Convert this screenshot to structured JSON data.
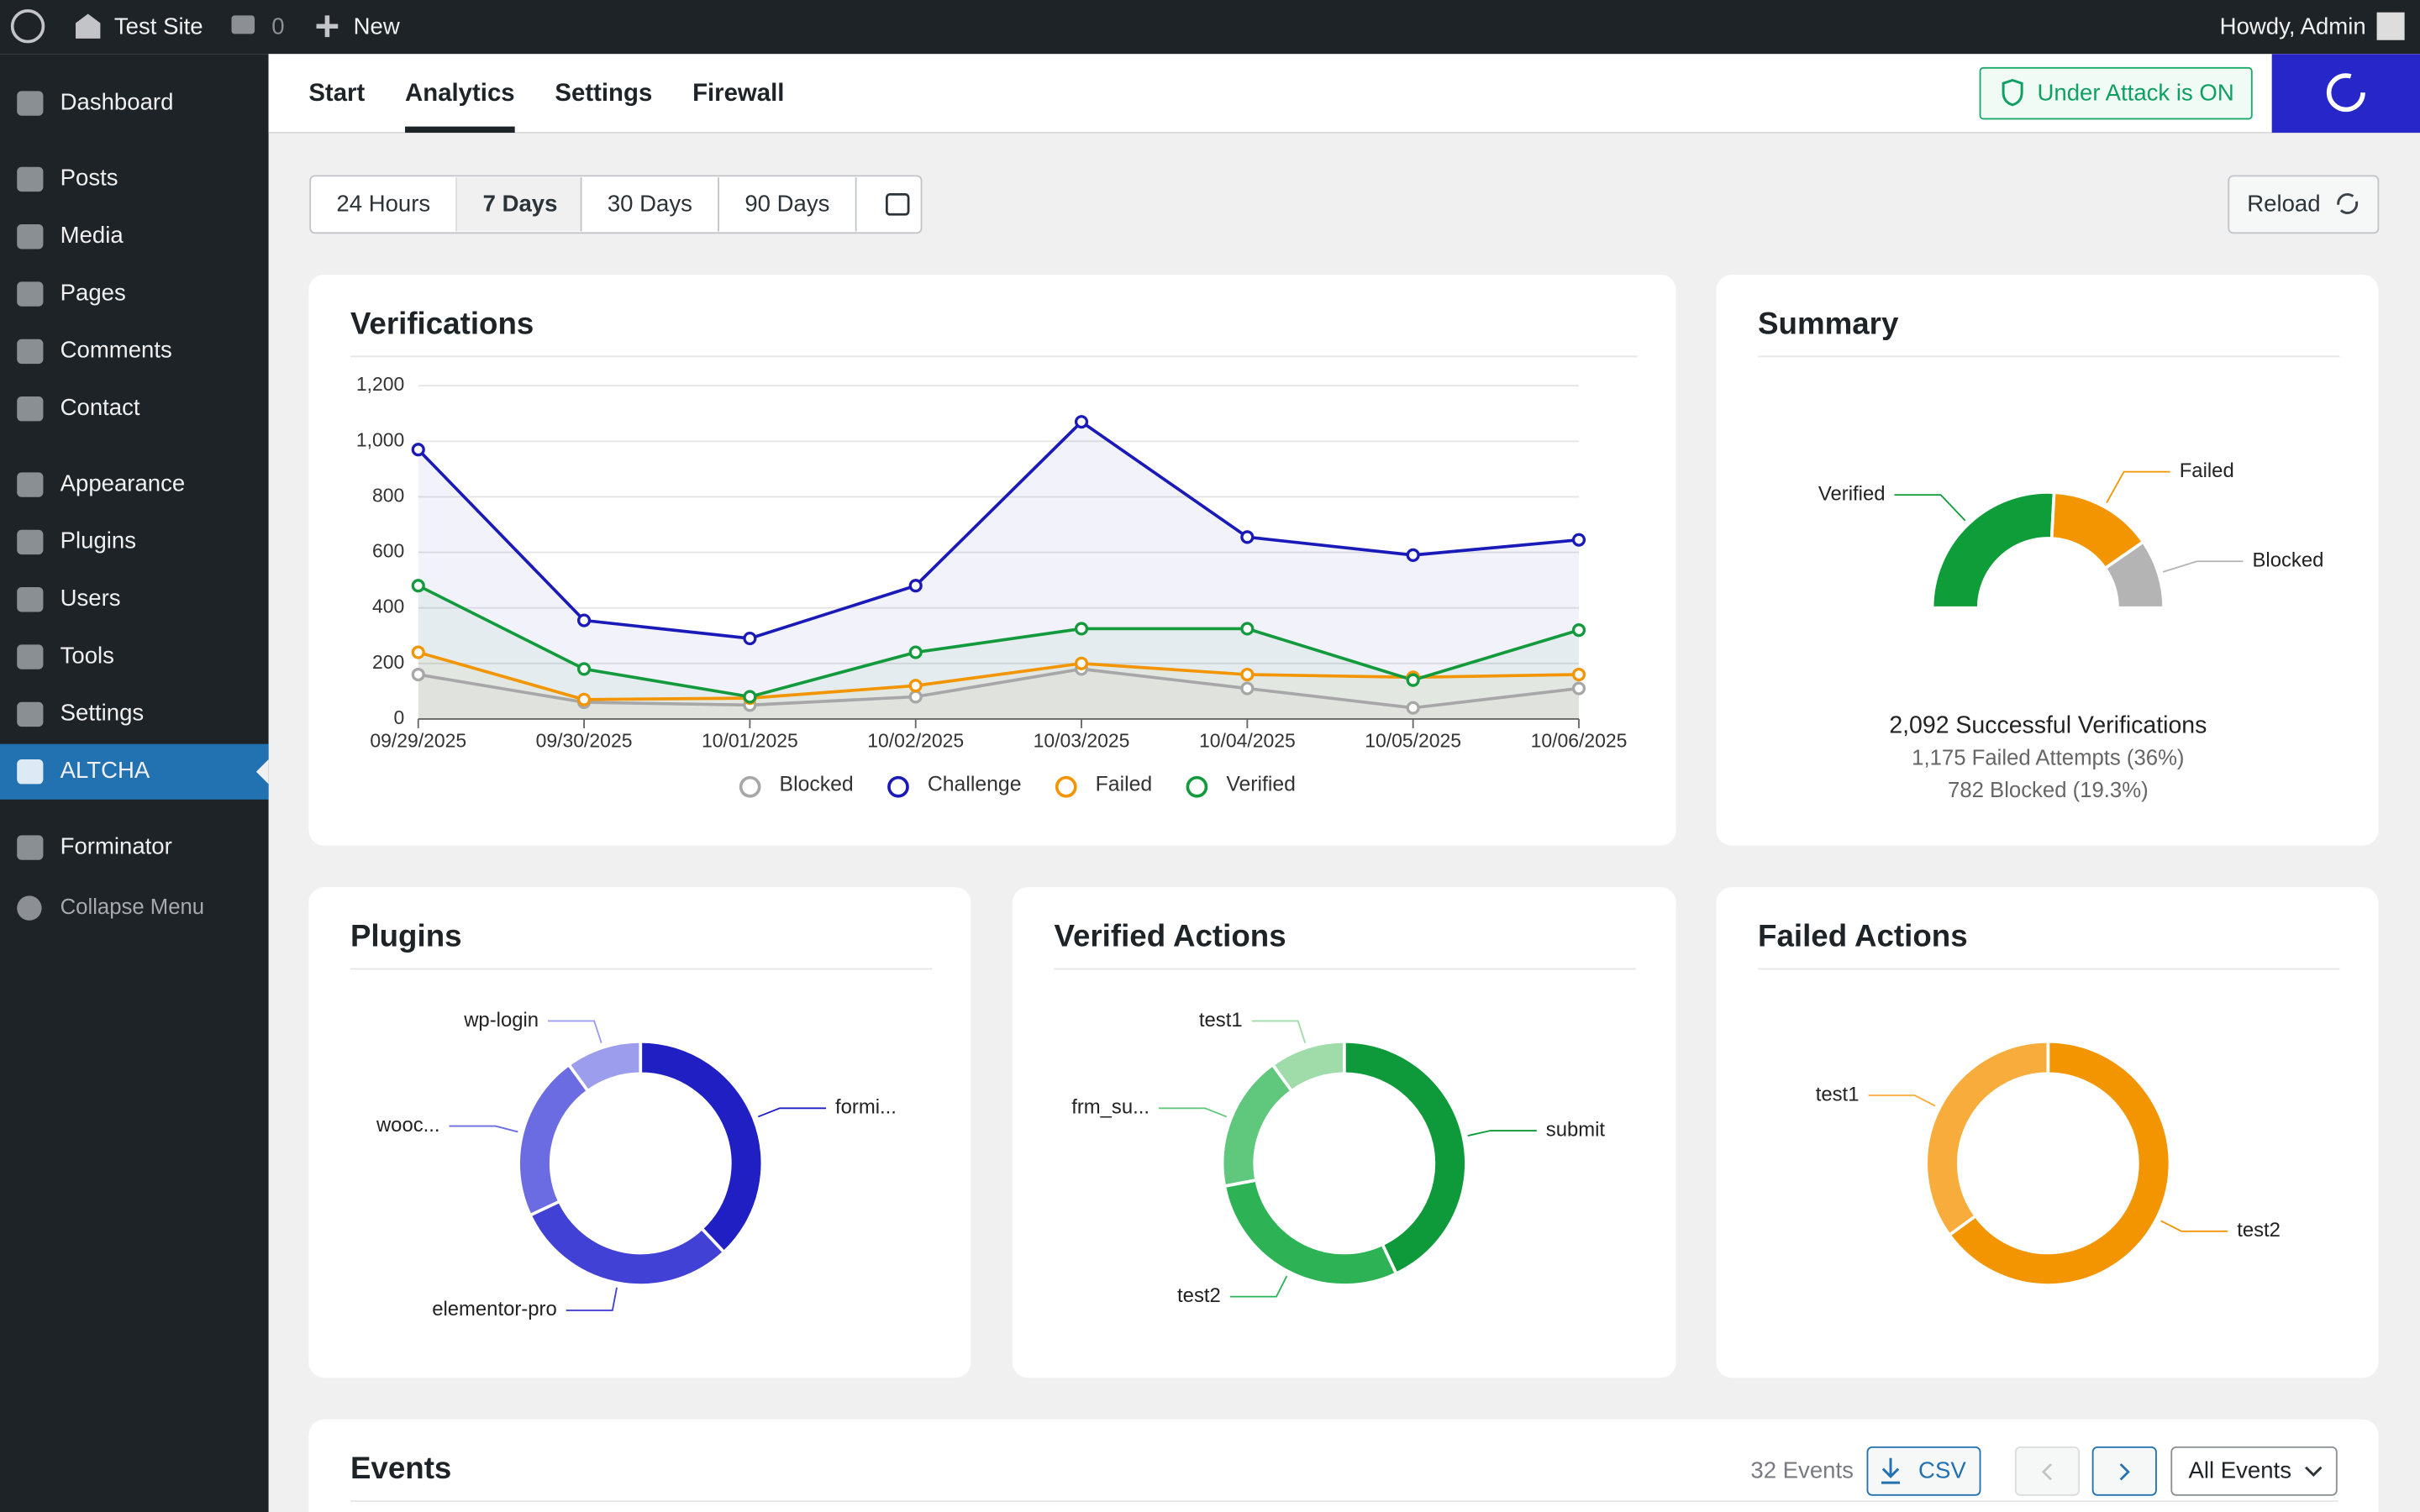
{
  "admin_bar": {
    "site_name": "Test Site",
    "comments": "0",
    "new": "New",
    "greeting": "Howdy, Admin"
  },
  "sidebar": {
    "items": [
      "Dashboard",
      "Posts",
      "Media",
      "Pages",
      "Comments",
      "Contact",
      "Appearance",
      "Plugins",
      "Users",
      "Tools",
      "Settings",
      "ALTCHA",
      "Forminator"
    ],
    "active_index": 11,
    "collapse": "Collapse Menu"
  },
  "tabs": {
    "items": [
      "Start",
      "Analytics",
      "Settings",
      "Firewall"
    ],
    "active_index": 1
  },
  "status_badge": "Under Attack is ON",
  "range_buttons": {
    "items": [
      "24 Hours",
      "7 Days",
      "30 Days",
      "90 Days"
    ],
    "active_index": 1
  },
  "reload": "Reload",
  "chart_data": [
    {
      "type": "line",
      "title": "Verifications",
      "x": [
        "09/29/2025",
        "09/30/2025",
        "10/01/2025",
        "10/02/2025",
        "10/03/2025",
        "10/04/2025",
        "10/05/2025",
        "10/06/2025"
      ],
      "series": [
        {
          "name": "Blocked",
          "color": "#a7a7a7",
          "values": [
            160,
            60,
            50,
            80,
            180,
            110,
            40,
            110
          ]
        },
        {
          "name": "Challenge",
          "color": "#1a1ab8",
          "values": [
            970,
            355,
            290,
            480,
            1070,
            655,
            590,
            645
          ]
        },
        {
          "name": "Failed",
          "color": "#f29500",
          "values": [
            240,
            70,
            75,
            120,
            200,
            160,
            150,
            160
          ]
        },
        {
          "name": "Verified",
          "color": "#129a3c",
          "values": [
            480,
            180,
            80,
            240,
            325,
            325,
            140,
            320
          ]
        }
      ],
      "ylim": [
        0,
        1200
      ],
      "yticks": [
        0,
        200,
        400,
        600,
        800,
        {
          "value": 1000,
          "label": "1,000"
        },
        {
          "value": 1200,
          "label": "1,200"
        }
      ],
      "grid": true
    },
    {
      "type": "semi-donut",
      "title": "Summary",
      "categories": [
        "Verified",
        "Failed",
        "Blocked"
      ],
      "values": [
        2092,
        1175,
        782
      ],
      "colors": [
        "#0f9d3a",
        "#f29500",
        "#b4b4b4"
      ],
      "lines": [
        "2,092 Successful Verifications",
        "1,175 Failed Attempts (36%)",
        "782 Blocked (19.3%)"
      ]
    },
    {
      "type": "donut",
      "title": "Plugins",
      "categories": [
        "formi...",
        "elementor-pro",
        "wooc...",
        "wp-login"
      ],
      "values": [
        38,
        30,
        22,
        10
      ],
      "colors": [
        "#1f1fc4",
        "#4141d6",
        "#6c6ce2",
        "#9d9dee"
      ]
    },
    {
      "type": "donut",
      "title": "Verified Actions",
      "categories": [
        "submit",
        "test2",
        "frm_su...",
        "test1"
      ],
      "values": [
        43,
        29,
        18,
        10
      ],
      "colors": [
        "#0e9a3a",
        "#2db355",
        "#60c87d",
        "#9fdcaa"
      ]
    },
    {
      "type": "donut",
      "title": "Failed Actions",
      "categories": [
        "test2",
        "test1"
      ],
      "values": [
        65,
        35
      ],
      "colors": [
        "#f29500",
        "#f8ac3c"
      ]
    }
  ],
  "events": {
    "title": "Events",
    "count": "32 Events",
    "csv": "CSV",
    "filter": "All Events"
  }
}
